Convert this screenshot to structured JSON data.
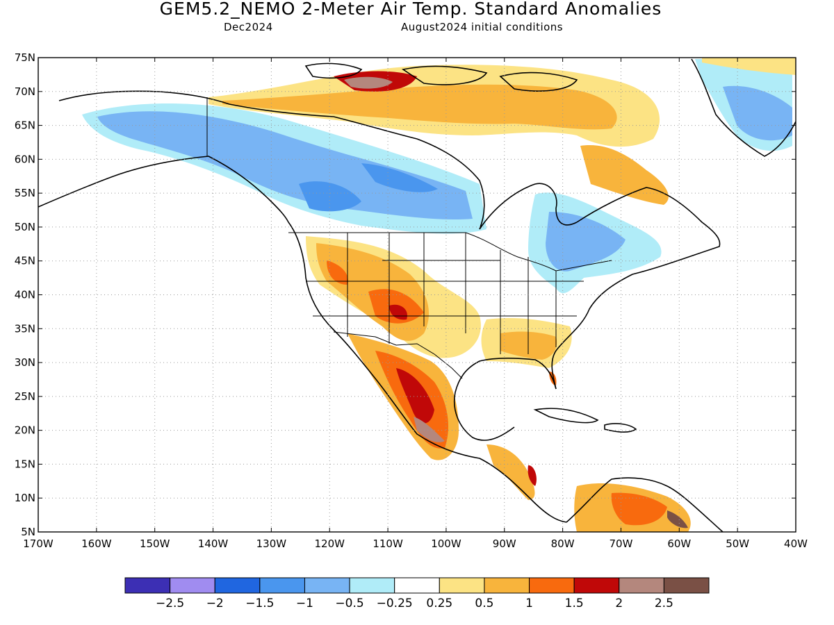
{
  "header": {
    "title": "GEM5.2_NEMO 2-Meter Air Temp. Standard Anomalies",
    "valid_month": "Dec2024",
    "init": "August2024 initial conditions"
  },
  "map": {
    "lat_labels": [
      "75N",
      "70N",
      "65N",
      "60N",
      "55N",
      "50N",
      "45N",
      "40N",
      "35N",
      "30N",
      "25N",
      "20N",
      "15N",
      "10N",
      "5N"
    ],
    "lon_labels": [
      "170W",
      "160W",
      "150W",
      "140W",
      "130W",
      "120W",
      "110W",
      "100W",
      "90W",
      "80W",
      "70W",
      "60W",
      "50W",
      "40W"
    ],
    "lat_range": [
      5,
      75
    ],
    "lon_range": [
      -170,
      -40
    ],
    "grid": "dotted"
  },
  "colorbar": {
    "colors": [
      "#3c2fb4",
      "#a08cf0",
      "#2066e0",
      "#4a96ee",
      "#78b4f4",
      "#b0ecf8",
      "#ffffff",
      "#fce384",
      "#f8b43c",
      "#f86a0e",
      "#c00808",
      "#b4877d",
      "#7a5045"
    ],
    "labels": [
      "−2.5",
      "−2",
      "−1.5",
      "−1",
      "−0.5",
      "−0.25",
      "0.25",
      "0.5",
      "1",
      "1.5",
      "2",
      "2.5"
    ]
  },
  "anomaly_regions": [
    {
      "name": "western-canada-cold",
      "level": "-1"
    },
    {
      "name": "hudson-bay-cold-core",
      "level": "-1.5"
    },
    {
      "name": "great-lakes-cold",
      "level": "-1"
    },
    {
      "name": "arctic-islands-warm",
      "level": "1"
    },
    {
      "name": "southwest-us-warm",
      "level": "1.5"
    },
    {
      "name": "mexico-warm",
      "level": "2"
    },
    {
      "name": "southeast-us-warm",
      "level": "0.5"
    },
    {
      "name": "venezuela-warm",
      "level": "1.5"
    },
    {
      "name": "greenland-cold",
      "level": "-1"
    }
  ]
}
